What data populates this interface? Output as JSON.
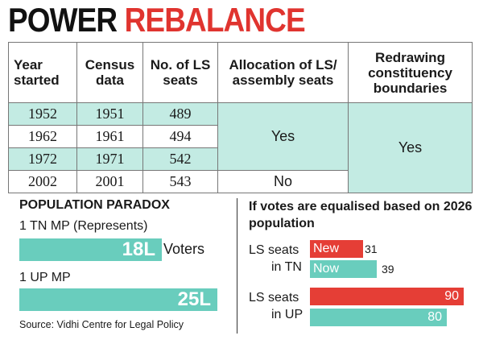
{
  "title": {
    "part1": "POWER",
    "part2": "REBALANCE"
  },
  "table": {
    "headers": [
      "Year started",
      "Census data",
      "No. of LS seats",
      "Allocation of LS/ assembly seats",
      "Redrawing constituency boundaries"
    ],
    "rows": [
      {
        "year": "1952",
        "census": "1951",
        "seats": "489"
      },
      {
        "year": "1962",
        "census": "1961",
        "seats": "494"
      },
      {
        "year": "1972",
        "census": "1971",
        "seats": "542"
      },
      {
        "year": "2002",
        "census": "2001",
        "seats": "543"
      }
    ],
    "allocation_yes": "Yes",
    "allocation_no": "No",
    "redrawing_yes": "Yes"
  },
  "paradox": {
    "title": "POPULATION PARADOX",
    "tn_label": "1 TN MP (Represents)",
    "tn_value": "18L",
    "tn_suffix": "Voters",
    "up_label": "1 UP MP",
    "up_value": "25L"
  },
  "equalised": {
    "title": "If votes are equalised based on 2026 population",
    "tn_label_1": "LS seats",
    "tn_label_2": "in TN",
    "up_label_1": "LS seats",
    "up_label_2": "in UP",
    "new_label": "New",
    "now_label": "Now"
  },
  "chart_data": [
    {
      "type": "bar",
      "title": "POPULATION PARADOX",
      "categories": [
        "1 TN MP (Represents)",
        "1 UP MP"
      ],
      "values": [
        18,
        25
      ],
      "units": "L",
      "suffix": "Voters"
    },
    {
      "type": "bar",
      "title": "If votes are equalised based on 2026 population",
      "categories": [
        "LS seats in TN",
        "LS seats in UP"
      ],
      "series": [
        {
          "name": "New",
          "values": [
            31,
            90
          ]
        },
        {
          "name": "Now",
          "values": [
            39,
            80
          ]
        }
      ]
    }
  ],
  "source": "Source: Vidhi Centre for Legal Policy",
  "colors": {
    "title_red": "#e0342f",
    "teal": "#69cdbd",
    "light_teal": "#c3ebe3",
    "red": "#e53e36"
  }
}
